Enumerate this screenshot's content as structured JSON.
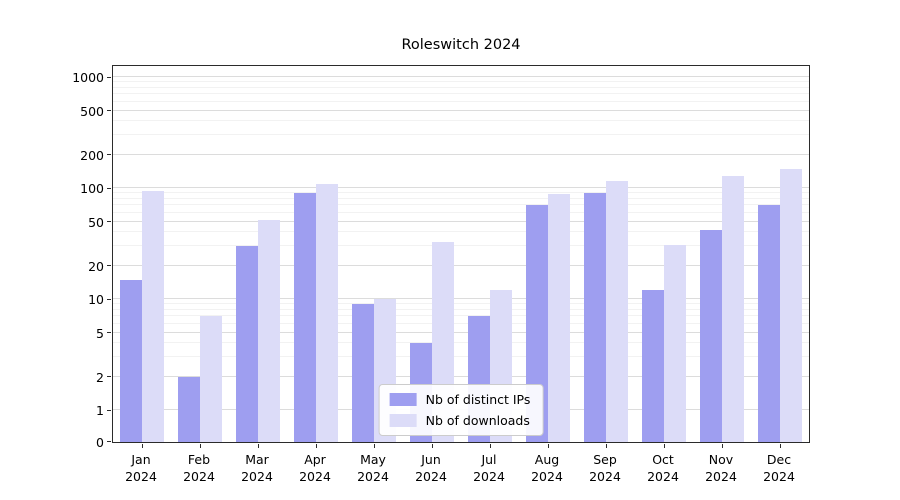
{
  "chart_data": {
    "type": "bar",
    "title": "Roleswitch 2024",
    "yscale": "symlog",
    "grid": true,
    "legend_position": "lower center",
    "xlabel": "",
    "ylabel": "",
    "ylim": [
      0,
      1200
    ],
    "categories": [
      "Jan 2024",
      "Feb 2024",
      "Mar 2024",
      "Apr 2024",
      "May 2024",
      "Jun 2024",
      "Jul 2024",
      "Aug 2024",
      "Sep 2024",
      "Oct 2024",
      "Nov 2024",
      "Dec 2024"
    ],
    "yticks": [
      0,
      1,
      2,
      5,
      10,
      20,
      50,
      100,
      200,
      500,
      1000
    ],
    "series": [
      {
        "name": "Nb of distinct IPs",
        "color": "#9e9ef0",
        "values": [
          15,
          2,
          30,
          90,
          9,
          4,
          7,
          70,
          90,
          12,
          42,
          70
        ]
      },
      {
        "name": "Nb of downloads",
        "color": "#dcdcf8",
        "values": [
          95,
          7,
          52,
          110,
          10,
          33,
          12,
          88,
          115,
          31,
          130,
          150
        ]
      }
    ]
  }
}
